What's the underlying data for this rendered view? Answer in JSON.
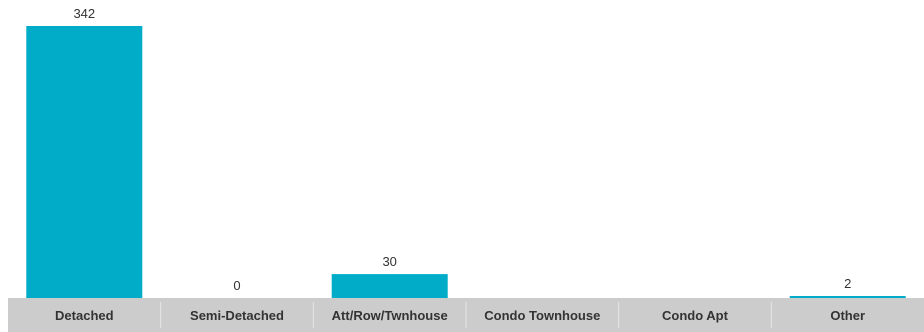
{
  "chart_data": {
    "type": "bar",
    "categories": [
      "Detached",
      "Semi-Detached",
      "Att/Row/Twnhouse",
      "Condo Townhouse",
      "Condo Apt",
      "Other"
    ],
    "values": [
      342,
      0,
      30,
      null,
      null,
      2
    ],
    "value_labels": [
      "342",
      "0",
      "30",
      "",
      "",
      "2"
    ],
    "title": "",
    "xlabel": "",
    "ylabel": "",
    "ylim": [
      0,
      342
    ],
    "grid": false,
    "legend": "none",
    "colors": {
      "bar": "#00acc8",
      "axis_band": "#cccccc",
      "separator": "#e6e6e6",
      "text": "#333333"
    }
  }
}
